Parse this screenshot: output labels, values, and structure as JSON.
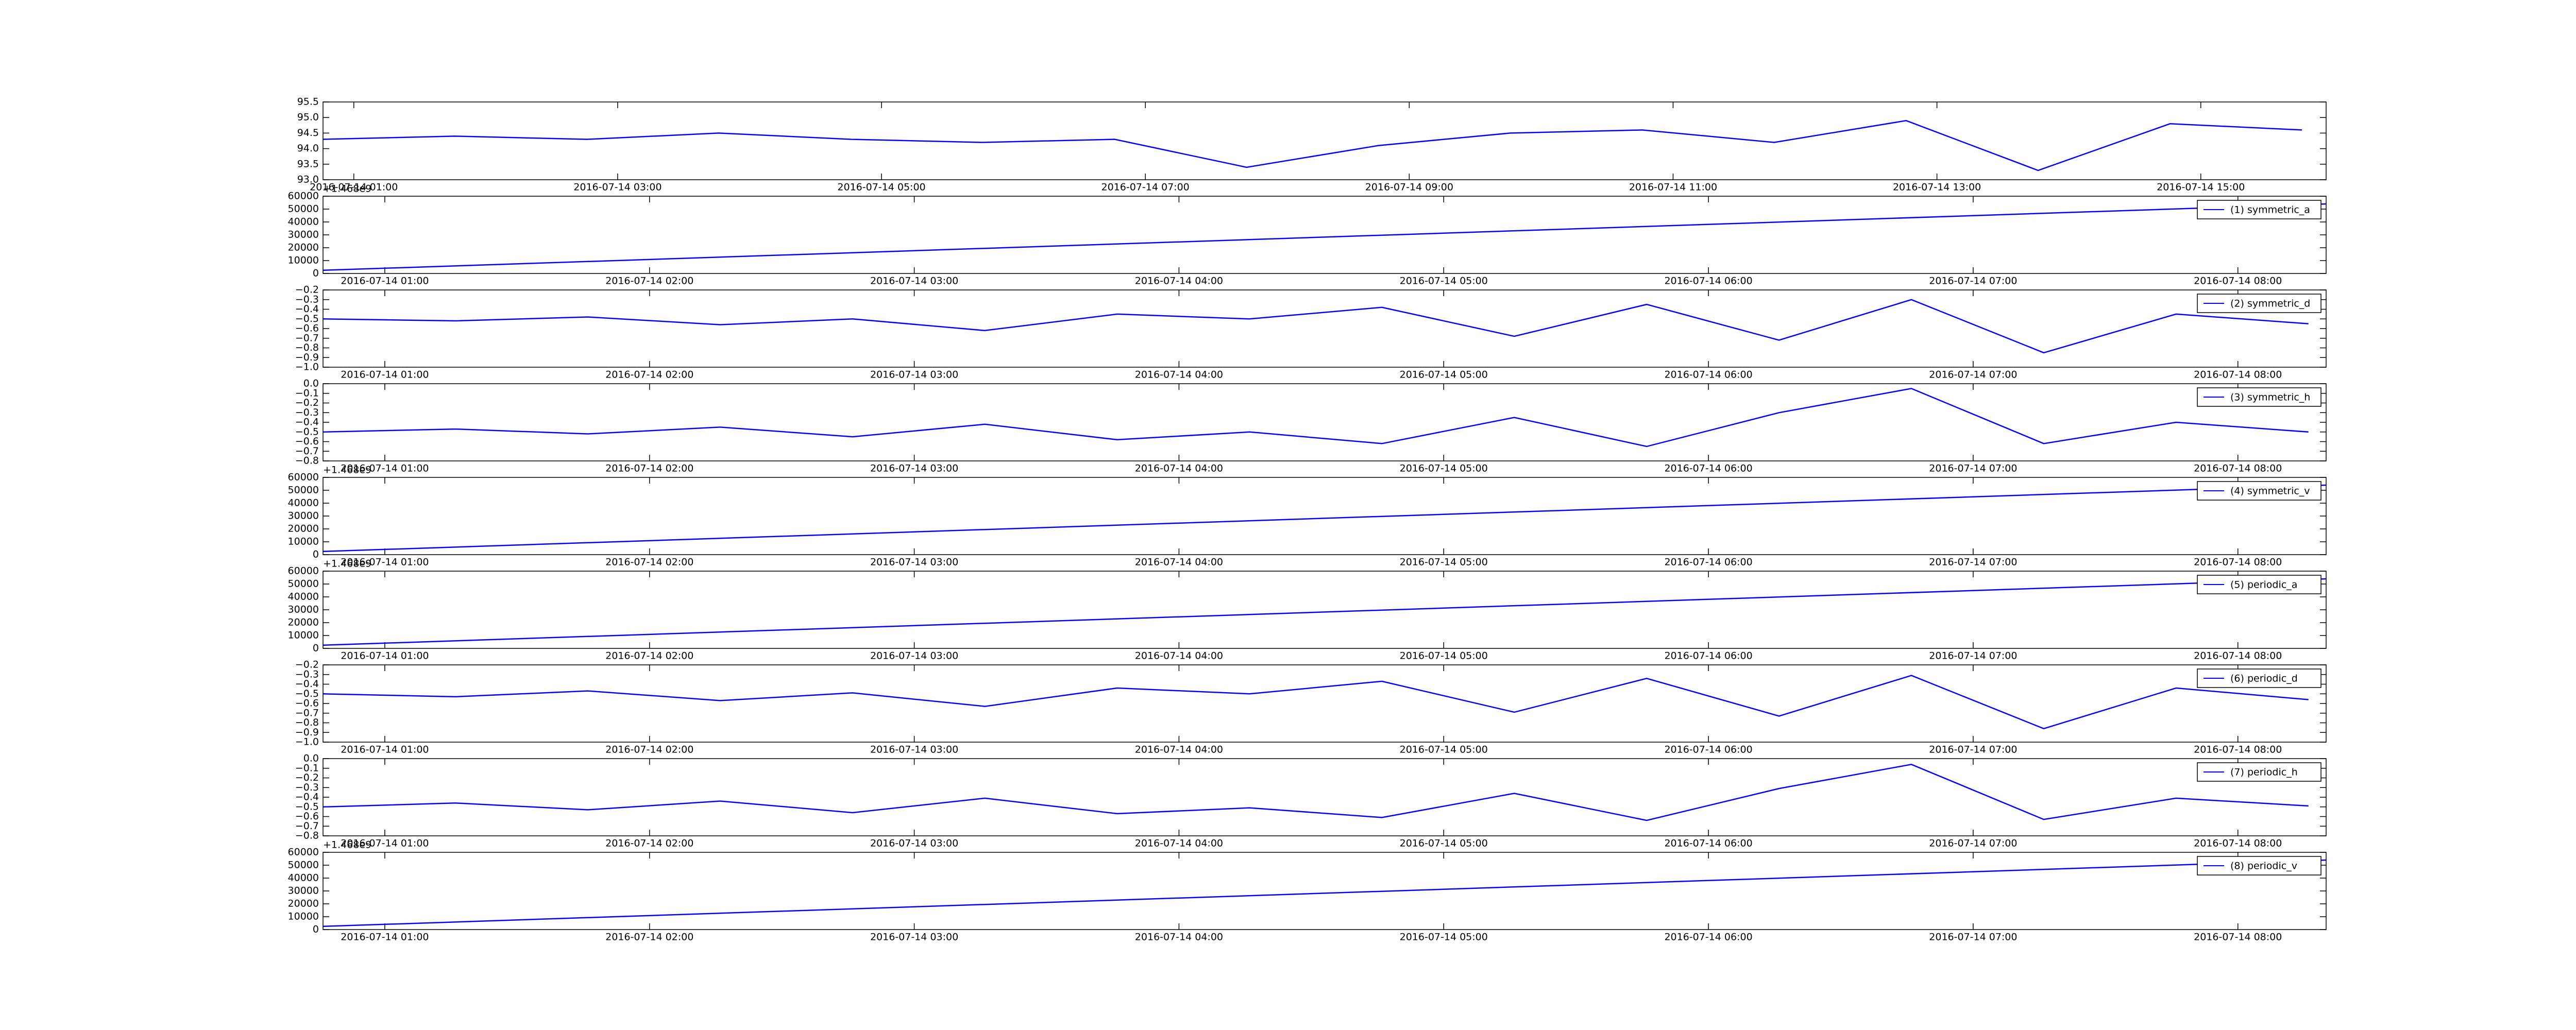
{
  "chart_data": [
    {
      "type": "line",
      "xlim": [
        "2016-07-14 00:46",
        "2016-07-14 15:57"
      ],
      "xticks": [
        "2016-07-14 01:00",
        "2016-07-14 03:00",
        "2016-07-14 05:00",
        "2016-07-14 07:00",
        "2016-07-14 09:00",
        "2016-07-14 11:00",
        "2016-07-14 13:00",
        "2016-07-14 15:00"
      ],
      "ylim": [
        93,
        95.5
      ],
      "yticks": [
        {
          "value": 93,
          "label": "93.0"
        },
        93.5,
        {
          "value": 94,
          "label": "94.0"
        },
        94.5,
        {
          "value": 95,
          "label": "95.0"
        },
        95.5
      ],
      "x": [
        "2016-07-14 00:46",
        "2016-07-14 01:46",
        "2016-07-14 02:46",
        "2016-07-14 03:46",
        "2016-07-14 04:46",
        "2016-07-14 05:46",
        "2016-07-14 06:46",
        "2016-07-14 07:46",
        "2016-07-14 08:46",
        "2016-07-14 09:46",
        "2016-07-14 10:46",
        "2016-07-14 11:46",
        "2016-07-14 12:46",
        "2016-07-14 13:46",
        "2016-07-14 14:46",
        "2016-07-14 15:46"
      ],
      "series": [
        {
          "color": "#0000ff",
          "values": [
            94.3,
            94.4,
            94.3,
            94.5,
            94.3,
            94.2,
            94.3,
            93.4,
            94.1,
            94.5,
            94.6,
            94.2,
            94.9,
            93.3,
            94.8,
            94.6
          ]
        }
      ]
    },
    {
      "type": "line",
      "offset_text": "+1.468e9",
      "legend": "upper right",
      "xlim": [
        "2016-07-14 00:46",
        "2016-07-14 08:20"
      ],
      "xticks": [
        "2016-07-14 01:00",
        "2016-07-14 02:00",
        "2016-07-14 03:00",
        "2016-07-14 04:00",
        "2016-07-14 05:00",
        "2016-07-14 06:00",
        "2016-07-14 07:00",
        "2016-07-14 08:00"
      ],
      "ylim": [
        0,
        60000
      ],
      "yticks": [
        0,
        10000,
        20000,
        30000,
        40000,
        50000,
        60000
      ],
      "x": [
        "2016-07-14 00:46",
        "2016-07-14 08:20"
      ],
      "series": [
        {
          "name": "(1) symmetric_a",
          "color": "#0000ff",
          "values": [
            2500,
            54000
          ]
        }
      ]
    },
    {
      "type": "line",
      "legend": "upper right",
      "xlim": [
        "2016-07-14 00:46",
        "2016-07-14 08:20"
      ],
      "xticks": [
        "2016-07-14 01:00",
        "2016-07-14 02:00",
        "2016-07-14 03:00",
        "2016-07-14 04:00",
        "2016-07-14 05:00",
        "2016-07-14 06:00",
        "2016-07-14 07:00",
        "2016-07-14 08:00"
      ],
      "ylim": [
        -1.0,
        -0.2
      ],
      "yticks": [
        {
          "value": -1.0,
          "label": "−1.0"
        },
        {
          "value": -0.9,
          "label": "−0.9"
        },
        {
          "value": -0.8,
          "label": "−0.8"
        },
        {
          "value": -0.7,
          "label": "−0.7"
        },
        {
          "value": -0.6,
          "label": "−0.6"
        },
        {
          "value": -0.5,
          "label": "−0.5"
        },
        {
          "value": -0.4,
          "label": "−0.4"
        },
        {
          "value": -0.3,
          "label": "−0.3"
        },
        {
          "value": -0.2,
          "label": "−0.2"
        }
      ],
      "x": [
        "2016-07-14 00:46",
        "2016-07-14 01:16",
        "2016-07-14 01:46",
        "2016-07-14 02:16",
        "2016-07-14 02:46",
        "2016-07-14 03:16",
        "2016-07-14 03:46",
        "2016-07-14 04:16",
        "2016-07-14 04:46",
        "2016-07-14 05:16",
        "2016-07-14 05:46",
        "2016-07-14 06:16",
        "2016-07-14 06:46",
        "2016-07-14 07:16",
        "2016-07-14 07:46",
        "2016-07-14 08:16"
      ],
      "series": [
        {
          "name": "(2) symmetric_d",
          "color": "#0000ff",
          "values": [
            -0.5,
            -0.52,
            -0.48,
            -0.56,
            -0.5,
            -0.62,
            -0.45,
            -0.5,
            -0.38,
            -0.68,
            -0.35,
            -0.72,
            -0.3,
            -0.85,
            -0.45,
            -0.55
          ]
        }
      ]
    },
    {
      "type": "line",
      "legend": "upper right",
      "xlim": [
        "2016-07-14 00:46",
        "2016-07-14 08:20"
      ],
      "xticks": [
        "2016-07-14 01:00",
        "2016-07-14 02:00",
        "2016-07-14 03:00",
        "2016-07-14 04:00",
        "2016-07-14 05:00",
        "2016-07-14 06:00",
        "2016-07-14 07:00",
        "2016-07-14 08:00"
      ],
      "ylim": [
        -0.8,
        0.0
      ],
      "yticks": [
        {
          "value": -0.8,
          "label": "−0.8"
        },
        {
          "value": -0.7,
          "label": "−0.7"
        },
        {
          "value": -0.6,
          "label": "−0.6"
        },
        {
          "value": -0.5,
          "label": "−0.5"
        },
        {
          "value": -0.4,
          "label": "−0.4"
        },
        {
          "value": -0.3,
          "label": "−0.3"
        },
        {
          "value": -0.2,
          "label": "−0.2"
        },
        {
          "value": -0.1,
          "label": "−0.1"
        },
        {
          "value": 0,
          "label": "0.0"
        }
      ],
      "x": [
        "2016-07-14 00:46",
        "2016-07-14 01:16",
        "2016-07-14 01:46",
        "2016-07-14 02:16",
        "2016-07-14 02:46",
        "2016-07-14 03:16",
        "2016-07-14 03:46",
        "2016-07-14 04:16",
        "2016-07-14 04:46",
        "2016-07-14 05:16",
        "2016-07-14 05:46",
        "2016-07-14 06:16",
        "2016-07-14 06:46",
        "2016-07-14 07:16",
        "2016-07-14 07:46",
        "2016-07-14 08:16"
      ],
      "series": [
        {
          "name": "(3) symmetric_h",
          "color": "#0000ff",
          "values": [
            -0.5,
            -0.47,
            -0.52,
            -0.45,
            -0.55,
            -0.42,
            -0.58,
            -0.5,
            -0.62,
            -0.35,
            -0.65,
            -0.3,
            -0.05,
            -0.62,
            -0.4,
            -0.5
          ]
        }
      ]
    },
    {
      "type": "line",
      "offset_text": "+1.468e9",
      "legend": "upper right",
      "xlim": [
        "2016-07-14 00:46",
        "2016-07-14 08:20"
      ],
      "xticks": [
        "2016-07-14 01:00",
        "2016-07-14 02:00",
        "2016-07-14 03:00",
        "2016-07-14 04:00",
        "2016-07-14 05:00",
        "2016-07-14 06:00",
        "2016-07-14 07:00",
        "2016-07-14 08:00"
      ],
      "ylim": [
        0,
        60000
      ],
      "yticks": [
        0,
        10000,
        20000,
        30000,
        40000,
        50000,
        60000
      ],
      "x": [
        "2016-07-14 00:46",
        "2016-07-14 08:20"
      ],
      "series": [
        {
          "name": "(4) symmetric_v",
          "color": "#0000ff",
          "values": [
            2500,
            54000
          ]
        }
      ]
    },
    {
      "type": "line",
      "offset_text": "+1.468e9",
      "legend": "upper right",
      "xlim": [
        "2016-07-14 00:46",
        "2016-07-14 08:20"
      ],
      "xticks": [
        "2016-07-14 01:00",
        "2016-07-14 02:00",
        "2016-07-14 03:00",
        "2016-07-14 04:00",
        "2016-07-14 05:00",
        "2016-07-14 06:00",
        "2016-07-14 07:00",
        "2016-07-14 08:00"
      ],
      "ylim": [
        0,
        60000
      ],
      "yticks": [
        0,
        10000,
        20000,
        30000,
        40000,
        50000,
        60000
      ],
      "x": [
        "2016-07-14 00:46",
        "2016-07-14 08:20"
      ],
      "series": [
        {
          "name": "(5) periodic_a",
          "color": "#0000ff",
          "values": [
            2500,
            54000
          ]
        }
      ]
    },
    {
      "type": "line",
      "legend": "upper right",
      "xlim": [
        "2016-07-14 00:46",
        "2016-07-14 08:20"
      ],
      "xticks": [
        "2016-07-14 01:00",
        "2016-07-14 02:00",
        "2016-07-14 03:00",
        "2016-07-14 04:00",
        "2016-07-14 05:00",
        "2016-07-14 06:00",
        "2016-07-14 07:00",
        "2016-07-14 08:00"
      ],
      "ylim": [
        -1.0,
        -0.2
      ],
      "yticks": [
        {
          "value": -1.0,
          "label": "−1.0"
        },
        {
          "value": -0.9,
          "label": "−0.9"
        },
        {
          "value": -0.8,
          "label": "−0.8"
        },
        {
          "value": -0.7,
          "label": "−0.7"
        },
        {
          "value": -0.6,
          "label": "−0.6"
        },
        {
          "value": -0.5,
          "label": "−0.5"
        },
        {
          "value": -0.4,
          "label": "−0.4"
        },
        {
          "value": -0.3,
          "label": "−0.3"
        },
        {
          "value": -0.2,
          "label": "−0.2"
        }
      ],
      "x": [
        "2016-07-14 00:46",
        "2016-07-14 01:16",
        "2016-07-14 01:46",
        "2016-07-14 02:16",
        "2016-07-14 02:46",
        "2016-07-14 03:16",
        "2016-07-14 03:46",
        "2016-07-14 04:16",
        "2016-07-14 04:46",
        "2016-07-14 05:16",
        "2016-07-14 05:46",
        "2016-07-14 06:16",
        "2016-07-14 06:46",
        "2016-07-14 07:16",
        "2016-07-14 07:46",
        "2016-07-14 08:16"
      ],
      "series": [
        {
          "name": "(6) periodic_d",
          "color": "#0000ff",
          "values": [
            -0.5,
            -0.53,
            -0.47,
            -0.57,
            -0.49,
            -0.63,
            -0.44,
            -0.5,
            -0.37,
            -0.69,
            -0.34,
            -0.73,
            -0.31,
            -0.86,
            -0.44,
            -0.56
          ]
        }
      ]
    },
    {
      "type": "line",
      "legend": "upper right",
      "xlim": [
        "2016-07-14 00:46",
        "2016-07-14 08:20"
      ],
      "xticks": [
        "2016-07-14 01:00",
        "2016-07-14 02:00",
        "2016-07-14 03:00",
        "2016-07-14 04:00",
        "2016-07-14 05:00",
        "2016-07-14 06:00",
        "2016-07-14 07:00",
        "2016-07-14 08:00"
      ],
      "ylim": [
        -0.8,
        0.0
      ],
      "yticks": [
        {
          "value": -0.8,
          "label": "−0.8"
        },
        {
          "value": -0.7,
          "label": "−0.7"
        },
        {
          "value": -0.6,
          "label": "−0.6"
        },
        {
          "value": -0.5,
          "label": "−0.5"
        },
        {
          "value": -0.4,
          "label": "−0.4"
        },
        {
          "value": -0.3,
          "label": "−0.3"
        },
        {
          "value": -0.2,
          "label": "−0.2"
        },
        {
          "value": -0.1,
          "label": "−0.1"
        },
        {
          "value": 0,
          "label": "0.0"
        }
      ],
      "x": [
        "2016-07-14 00:46",
        "2016-07-14 01:16",
        "2016-07-14 01:46",
        "2016-07-14 02:16",
        "2016-07-14 02:46",
        "2016-07-14 03:16",
        "2016-07-14 03:46",
        "2016-07-14 04:16",
        "2016-07-14 04:46",
        "2016-07-14 05:16",
        "2016-07-14 05:46",
        "2016-07-14 06:16",
        "2016-07-14 06:46",
        "2016-07-14 07:16",
        "2016-07-14 07:46",
        "2016-07-14 08:16"
      ],
      "series": [
        {
          "name": "(7) periodic_h",
          "color": "#0000ff",
          "values": [
            -0.5,
            -0.46,
            -0.53,
            -0.44,
            -0.56,
            -0.41,
            -0.57,
            -0.51,
            -0.61,
            -0.36,
            -0.64,
            -0.31,
            -0.06,
            -0.63,
            -0.41,
            -0.49
          ]
        }
      ]
    },
    {
      "type": "line",
      "offset_text": "+1.468e9",
      "legend": "upper right",
      "xlim": [
        "2016-07-14 00:46",
        "2016-07-14 08:20"
      ],
      "xticks": [
        "2016-07-14 01:00",
        "2016-07-14 02:00",
        "2016-07-14 03:00",
        "2016-07-14 04:00",
        "2016-07-14 05:00",
        "2016-07-14 06:00",
        "2016-07-14 07:00",
        "2016-07-14 08:00"
      ],
      "ylim": [
        0,
        60000
      ],
      "yticks": [
        0,
        10000,
        20000,
        30000,
        40000,
        50000,
        60000
      ],
      "x": [
        "2016-07-14 00:46",
        "2016-07-14 08:20"
      ],
      "series": [
        {
          "name": "(8) periodic_v",
          "color": "#0000ff",
          "values": [
            2500,
            54000
          ]
        }
      ]
    }
  ]
}
